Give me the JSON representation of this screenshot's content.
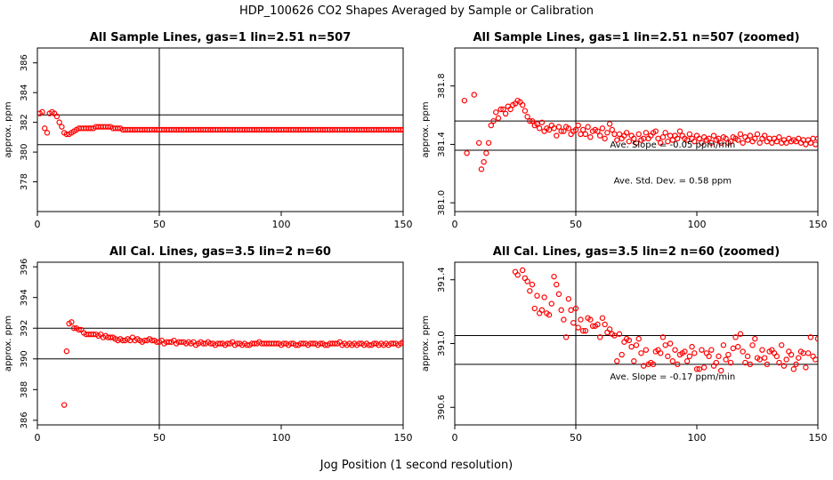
{
  "figure": {
    "title": "HDP_100626  CO2 Shapes Averaged by Sample or Calibration",
    "xlabel": "Jog Position (1 second resolution)",
    "point_color": "#ff0000",
    "line_color": "#000000"
  },
  "chart_data": [
    {
      "type": "scatter",
      "title": "All Sample Lines, gas=1 lin=2.51 n=507",
      "ylabel": "approx. ppm",
      "xlim": [
        0,
        150
      ],
      "ylim": [
        376,
        387
      ],
      "xticks": [
        0,
        50,
        100,
        150
      ],
      "yticks": [
        378,
        380,
        382,
        384,
        386
      ],
      "hlines": [
        382.5,
        380.5
      ],
      "vline": 50,
      "annotations": [],
      "x": [
        1,
        2,
        3,
        4,
        5,
        6,
        7,
        8,
        9,
        10,
        11,
        12,
        13,
        14,
        15,
        16,
        17,
        18,
        19,
        20,
        21,
        22,
        23,
        24,
        25,
        26,
        27,
        28,
        29,
        30,
        31,
        32,
        33,
        34,
        35,
        36,
        37,
        38,
        39,
        40,
        41,
        42,
        43,
        44,
        45,
        46,
        47,
        48,
        49,
        50,
        51,
        52,
        53,
        54,
        55,
        56,
        57,
        58,
        59,
        60,
        61,
        62,
        63,
        64,
        65,
        66,
        67,
        68,
        69,
        70,
        71,
        72,
        73,
        74,
        75,
        76,
        77,
        78,
        79,
        80,
        81,
        82,
        83,
        84,
        85,
        86,
        87,
        88,
        89,
        90,
        91,
        92,
        93,
        94,
        95,
        96,
        97,
        98,
        99,
        100,
        101,
        102,
        103,
        104,
        105,
        106,
        107,
        108,
        109,
        110,
        111,
        112,
        113,
        114,
        115,
        116,
        117,
        118,
        119,
        120,
        121,
        122,
        123,
        124,
        125,
        126,
        127,
        128,
        129,
        130,
        131,
        132,
        133,
        134,
        135,
        136,
        137,
        138,
        139,
        140,
        141,
        142,
        143,
        144,
        145,
        146,
        147,
        148,
        149,
        150
      ],
      "y": [
        382.6,
        382.7,
        381.6,
        381.3,
        382.6,
        382.7,
        382.6,
        382.4,
        382.0,
        381.7,
        381.3,
        381.2,
        381.2,
        381.3,
        381.4,
        381.5,
        381.6,
        381.6,
        381.6,
        381.6,
        381.6,
        381.6,
        381.6,
        381.7,
        381.7,
        381.7,
        381.7,
        381.7,
        381.7,
        381.7,
        381.6,
        381.6,
        381.6,
        381.6,
        381.5,
        381.5,
        381.5,
        381.5,
        381.5,
        381.5,
        381.5,
        381.5,
        381.5,
        381.5,
        381.5,
        381.5,
        381.5,
        381.5,
        381.5,
        381.5,
        381.5,
        381.5,
        381.5,
        381.5,
        381.5,
        381.5,
        381.5,
        381.5,
        381.5,
        381.5,
        381.5,
        381.5,
        381.5,
        381.5,
        381.5,
        381.5,
        381.5,
        381.5,
        381.5,
        381.5,
        381.5,
        381.5,
        381.5,
        381.5,
        381.5,
        381.5,
        381.5,
        381.5,
        381.5,
        381.5,
        381.5,
        381.5,
        381.5,
        381.5,
        381.5,
        381.5,
        381.5,
        381.5,
        381.5,
        381.5,
        381.5,
        381.5,
        381.5,
        381.5,
        381.5,
        381.5,
        381.5,
        381.5,
        381.5,
        381.5,
        381.5,
        381.5,
        381.5,
        381.5,
        381.5,
        381.5,
        381.5,
        381.5,
        381.5,
        381.5,
        381.5,
        381.5,
        381.5,
        381.5,
        381.5,
        381.5,
        381.5,
        381.5,
        381.5,
        381.5,
        381.5,
        381.5,
        381.5,
        381.5,
        381.5,
        381.5,
        381.5,
        381.5,
        381.5,
        381.5,
        381.5,
        381.5,
        381.5,
        381.5,
        381.5,
        381.5,
        381.5,
        381.5,
        381.5,
        381.5,
        381.5,
        381.5,
        381.5,
        381.5,
        381.5,
        381.5,
        381.5,
        381.5,
        381.5,
        381.5
      ]
    },
    {
      "type": "scatter",
      "title": "All Sample Lines, gas=1 lin=2.51 n=507 (zoomed)",
      "ylabel": "approx. ppm",
      "xlim": [
        0,
        150
      ],
      "ylim": [
        380.94,
        382.06
      ],
      "xticks": [
        0,
        50,
        100,
        150
      ],
      "yticks": [
        381.0,
        381.4,
        381.8
      ],
      "ytick_labels": [
        "381.0",
        "381.4",
        "381.8"
      ],
      "hlines": [
        381.56,
        381.36
      ],
      "vline": 50,
      "annotations": [
        "Ave. Slope =  -0.05  ppm/min",
        "Ave. Std. Dev. =  0.58  ppm"
      ],
      "x": [
        4,
        5,
        8,
        10,
        11,
        12,
        13,
        14,
        15,
        16,
        17,
        18,
        19,
        20,
        21,
        22,
        23,
        24,
        25,
        26,
        27,
        28,
        29,
        30,
        31,
        32,
        33,
        34,
        35,
        36,
        37,
        38,
        39,
        40,
        41,
        42,
        43,
        44,
        45,
        46,
        47,
        48,
        49,
        50,
        51,
        52,
        53,
        54,
        55,
        56,
        57,
        58,
        59,
        60,
        61,
        62,
        63,
        64,
        65,
        66,
        67,
        68,
        69,
        70,
        71,
        72,
        73,
        74,
        75,
        76,
        77,
        78,
        79,
        80,
        81,
        82,
        83,
        84,
        85,
        86,
        87,
        88,
        89,
        90,
        91,
        92,
        93,
        94,
        95,
        96,
        97,
        98,
        99,
        100,
        101,
        102,
        103,
        104,
        105,
        106,
        107,
        108,
        109,
        110,
        111,
        112,
        113,
        114,
        115,
        116,
        117,
        118,
        119,
        120,
        121,
        122,
        123,
        124,
        125,
        126,
        127,
        128,
        129,
        130,
        131,
        132,
        133,
        134,
        135,
        136,
        137,
        138,
        139,
        140,
        141,
        142,
        143,
        144,
        145,
        146,
        147,
        148,
        149,
        150
      ],
      "y": [
        381.7,
        381.34,
        381.74,
        381.41,
        381.23,
        381.28,
        381.34,
        381.41,
        381.53,
        381.56,
        381.62,
        381.58,
        381.64,
        381.64,
        381.61,
        381.66,
        381.64,
        381.67,
        381.68,
        381.7,
        381.69,
        381.67,
        381.63,
        381.59,
        381.56,
        381.56,
        381.53,
        381.54,
        381.51,
        381.55,
        381.49,
        381.51,
        381.5,
        381.53,
        381.51,
        381.46,
        381.52,
        381.49,
        381.49,
        381.52,
        381.51,
        381.47,
        381.49,
        381.5,
        381.53,
        381.47,
        381.5,
        381.47,
        381.52,
        381.45,
        381.49,
        381.5,
        381.49,
        381.46,
        381.51,
        381.44,
        381.48,
        381.54,
        381.5,
        381.47,
        381.43,
        381.47,
        381.44,
        381.46,
        381.48,
        381.42,
        381.46,
        381.44,
        381.41,
        381.47,
        381.43,
        381.44,
        381.48,
        381.44,
        381.46,
        381.48,
        381.49,
        381.44,
        381.41,
        381.45,
        381.48,
        381.42,
        381.46,
        381.43,
        381.46,
        381.44,
        381.49,
        381.46,
        381.44,
        381.43,
        381.47,
        381.44,
        381.42,
        381.46,
        381.44,
        381.41,
        381.45,
        381.43,
        381.44,
        381.41,
        381.46,
        381.43,
        381.44,
        381.41,
        381.45,
        381.44,
        381.41,
        381.42,
        381.45,
        381.44,
        381.43,
        381.47,
        381.41,
        381.45,
        381.43,
        381.46,
        381.42,
        381.44,
        381.47,
        381.41,
        381.44,
        381.46,
        381.42,
        381.44,
        381.41,
        381.44,
        381.42,
        381.45,
        381.41,
        381.43,
        381.41,
        381.44,
        381.42,
        381.43,
        381.42,
        381.44,
        381.41,
        381.43,
        381.4,
        381.43,
        381.41,
        381.44,
        381.4,
        381.44
      ]
    },
    {
      "type": "scatter",
      "title": "All Cal. Lines, gas=3.5 lin=2 n=60",
      "ylabel": "approx. ppm",
      "xlim": [
        0,
        150
      ],
      "ylim": [
        385.7,
        396.3
      ],
      "xticks": [
        0,
        50,
        100,
        150
      ],
      "yticks": [
        386,
        388,
        390,
        392,
        394,
        396
      ],
      "hlines": [
        392.0,
        390.0
      ],
      "vline": 50,
      "annotations": [],
      "x": [
        11,
        12,
        13,
        14,
        15,
        16,
        17,
        18,
        19,
        20,
        21,
        22,
        23,
        24,
        25,
        26,
        27,
        28,
        29,
        30,
        31,
        32,
        33,
        34,
        35,
        36,
        37,
        38,
        39,
        40,
        41,
        42,
        43,
        44,
        45,
        46,
        47,
        48,
        49,
        50,
        51,
        52,
        53,
        54,
        55,
        56,
        57,
        58,
        59,
        60,
        61,
        62,
        63,
        64,
        65,
        66,
        67,
        68,
        69,
        70,
        71,
        72,
        73,
        74,
        75,
        76,
        77,
        78,
        79,
        80,
        81,
        82,
        83,
        84,
        85,
        86,
        87,
        88,
        89,
        90,
        91,
        92,
        93,
        94,
        95,
        96,
        97,
        98,
        99,
        100,
        101,
        102,
        103,
        104,
        105,
        106,
        107,
        108,
        109,
        110,
        111,
        112,
        113,
        114,
        115,
        116,
        117,
        118,
        119,
        120,
        121,
        122,
        123,
        124,
        125,
        126,
        127,
        128,
        129,
        130,
        131,
        132,
        133,
        134,
        135,
        136,
        137,
        138,
        139,
        140,
        141,
        142,
        143,
        144,
        145,
        146,
        147,
        148,
        149,
        150
      ],
      "y": [
        387.0,
        390.5,
        392.3,
        392.4,
        392.0,
        392.0,
        391.9,
        391.9,
        391.7,
        391.6,
        391.6,
        391.6,
        391.6,
        391.6,
        391.5,
        391.6,
        391.4,
        391.5,
        391.4,
        391.4,
        391.4,
        391.3,
        391.2,
        391.3,
        391.2,
        391.2,
        391.3,
        391.2,
        391.4,
        391.2,
        391.3,
        391.2,
        391.1,
        391.2,
        391.2,
        391.3,
        391.2,
        391.2,
        391.1,
        391.1,
        391.2,
        391.0,
        391.1,
        391.1,
        391.1,
        391.2,
        391.0,
        391.1,
        391.1,
        391.1,
        391.0,
        391.1,
        391.0,
        391.1,
        390.9,
        391.0,
        391.1,
        391.0,
        391.0,
        391.1,
        391.0,
        391.0,
        390.9,
        391.0,
        391.0,
        391.0,
        390.9,
        391.0,
        391.0,
        391.1,
        390.9,
        391.0,
        391.0,
        390.9,
        391.0,
        390.9,
        390.9,
        391.0,
        391.0,
        391.0,
        391.1,
        391.0,
        391.0,
        391.0,
        391.0,
        391.0,
        391.0,
        391.0,
        391.0,
        390.9,
        391.0,
        391.0,
        390.9,
        391.0,
        391.0,
        390.9,
        390.9,
        391.0,
        391.0,
        391.0,
        390.9,
        391.0,
        391.0,
        391.0,
        390.9,
        391.0,
        391.0,
        390.9,
        390.9,
        391.0,
        391.0,
        391.0,
        391.0,
        391.1,
        390.9,
        391.0,
        390.9,
        391.0,
        390.9,
        391.0,
        390.9,
        391.0,
        391.0,
        390.9,
        391.0,
        390.9,
        390.9,
        391.0,
        391.0,
        390.9,
        391.0,
        390.9,
        391.0,
        390.9,
        391.0,
        391.0,
        391.0,
        390.9,
        391.0,
        391.1
      ]
    },
    {
      "type": "scatter",
      "title": "All Cal. Lines, gas=3.5 lin=2 n=60 (zoomed)",
      "ylabel": "approx. ppm",
      "xlim": [
        0,
        150
      ],
      "ylim": [
        390.49,
        391.51
      ],
      "xticks": [
        0,
        50,
        100,
        150
      ],
      "yticks": [
        390.6,
        391.0,
        391.4
      ],
      "ytick_labels": [
        "390.6",
        "391.0",
        "391.4"
      ],
      "hlines": [
        391.05,
        390.87
      ],
      "vline": 50,
      "annotations": [
        "Ave. Slope =  -0.17  ppm/min"
      ],
      "x": [
        25,
        26,
        28,
        29,
        30,
        31,
        32,
        33,
        34,
        35,
        36,
        37,
        38,
        39,
        40,
        41,
        42,
        43,
        44,
        45,
        46,
        47,
        48,
        49,
        50,
        51,
        52,
        53,
        54,
        55,
        56,
        57,
        58,
        59,
        60,
        61,
        62,
        63,
        64,
        65,
        66,
        67,
        68,
        69,
        70,
        71,
        72,
        73,
        74,
        75,
        76,
        77,
        78,
        79,
        80,
        81,
        82,
        83,
        84,
        85,
        86,
        87,
        88,
        89,
        90,
        91,
        92,
        93,
        94,
        95,
        96,
        97,
        98,
        99,
        100,
        101,
        102,
        103,
        104,
        105,
        106,
        107,
        108,
        109,
        110,
        111,
        112,
        113,
        114,
        115,
        116,
        117,
        118,
        119,
        120,
        121,
        122,
        123,
        124,
        125,
        126,
        127,
        128,
        129,
        130,
        131,
        132,
        133,
        134,
        135,
        136,
        137,
        138,
        139,
        140,
        141,
        142,
        143,
        144,
        145,
        146,
        147,
        148,
        149,
        150
      ],
      "y": [
        391.45,
        391.43,
        391.46,
        391.41,
        391.39,
        391.33,
        391.37,
        391.22,
        391.3,
        391.19,
        391.21,
        391.29,
        391.19,
        391.18,
        391.25,
        391.42,
        391.37,
        391.31,
        391.21,
        391.15,
        391.04,
        391.28,
        391.21,
        391.13,
        391.22,
        391.1,
        391.15,
        391.08,
        391.08,
        391.16,
        391.15,
        391.11,
        391.11,
        391.12,
        391.04,
        391.16,
        391.12,
        391.07,
        391.09,
        391.06,
        391.05,
        390.89,
        391.06,
        390.93,
        391.01,
        391.03,
        391.02,
        390.98,
        390.89,
        390.99,
        391.03,
        390.94,
        390.86,
        390.96,
        390.87,
        390.88,
        390.87,
        390.95,
        390.96,
        390.94,
        391.04,
        390.99,
        390.92,
        391.0,
        390.89,
        390.96,
        390.87,
        390.93,
        390.94,
        390.95,
        390.89,
        390.92,
        390.98,
        390.94,
        390.84,
        390.84,
        390.96,
        390.85,
        390.94,
        390.92,
        390.96,
        390.86,
        390.88,
        390.92,
        390.83,
        390.99,
        390.9,
        390.93,
        390.88,
        390.97,
        391.04,
        390.98,
        391.06,
        390.95,
        390.88,
        390.92,
        390.87,
        390.99,
        391.03,
        390.91,
        390.9,
        390.96,
        390.91,
        390.87,
        390.95,
        390.96,
        390.94,
        390.92,
        390.88,
        390.99,
        390.86,
        390.9,
        390.95,
        390.93,
        390.84,
        390.87,
        390.91,
        390.95,
        390.94,
        390.85,
        390.94,
        391.04,
        390.92,
        390.9,
        391.03
      ]
    }
  ]
}
